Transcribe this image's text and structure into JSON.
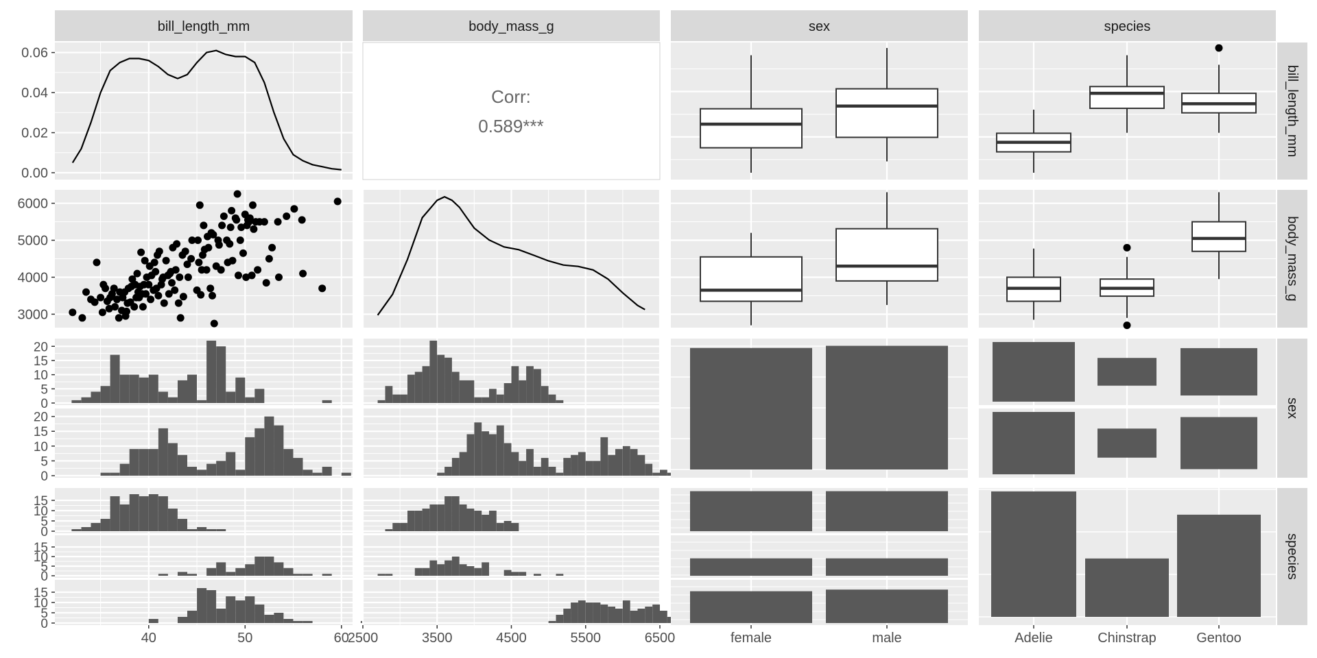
{
  "chart_data": {
    "type": "pairs",
    "variables": [
      "bill_length_mm",
      "body_mass_g",
      "sex",
      "species"
    ],
    "column_strips": [
      "bill_length_mm",
      "body_mass_g",
      "sex",
      "species"
    ],
    "row_strips": [
      "bill_length_mm",
      "body_mass_g",
      "sex",
      "species"
    ],
    "colors": {
      "panel": "#ebebeb",
      "grid": "#ffffff",
      "strip": "#d9d9d9",
      "ink": "#000000",
      "fill": "#595959",
      "box_line": "#333333",
      "corr_text": "#666666"
    },
    "bill_length": {
      "density_ylim": [
        0,
        0.065
      ],
      "density_y_ticks": [
        "0.00",
        "0.02",
        "0.04",
        "0.06"
      ],
      "density_y_values": [
        0,
        0.02,
        0.04,
        0.06
      ],
      "x_ticks": [
        "40",
        "50",
        "60"
      ],
      "x_tick_values": [
        40,
        50,
        60
      ],
      "xlim": [
        31.4,
        60.3
      ],
      "density": [
        [
          32.1,
          0.005
        ],
        [
          33,
          0.012
        ],
        [
          34,
          0.025
        ],
        [
          35,
          0.04
        ],
        [
          36,
          0.051
        ],
        [
          37,
          0.055
        ],
        [
          38,
          0.057
        ],
        [
          39,
          0.057
        ],
        [
          40,
          0.056
        ],
        [
          41,
          0.053
        ],
        [
          42,
          0.049
        ],
        [
          43,
          0.047
        ],
        [
          44,
          0.049
        ],
        [
          45,
          0.055
        ],
        [
          46,
          0.06
        ],
        [
          47,
          0.061
        ],
        [
          48,
          0.059
        ],
        [
          49,
          0.058
        ],
        [
          50,
          0.058
        ],
        [
          51,
          0.055
        ],
        [
          52,
          0.045
        ],
        [
          53,
          0.03
        ],
        [
          54,
          0.017
        ],
        [
          55,
          0.009
        ],
        [
          56,
          0.006
        ],
        [
          57,
          0.004
        ],
        [
          58,
          0.003
        ],
        [
          59,
          0.002
        ],
        [
          60,
          0.0015
        ]
      ]
    },
    "body_mass": {
      "ylim": [
        2600,
        6400
      ],
      "y_ticks": [
        "3000",
        "4000",
        "5000",
        "6000"
      ],
      "y_tick_values": [
        3000,
        4000,
        5000,
        6000
      ],
      "x_ticks": [
        "2500",
        "3500",
        "4500",
        "5500",
        "6500"
      ],
      "x_tick_values": [
        2500,
        3500,
        4500,
        5500,
        6500
      ],
      "xlim": [
        2500,
        6500
      ],
      "density": [
        [
          2700,
          1e-05
        ],
        [
          2900,
          4e-05
        ],
        [
          3100,
          9e-05
        ],
        [
          3300,
          0.00015
        ],
        [
          3500,
          0.000175
        ],
        [
          3600,
          0.00018
        ],
        [
          3700,
          0.000175
        ],
        [
          3800,
          0.000165
        ],
        [
          3900,
          0.00015
        ],
        [
          4000,
          0.000135
        ],
        [
          4200,
          0.000118
        ],
        [
          4400,
          0.000108
        ],
        [
          4600,
          0.000104
        ],
        [
          4800,
          9.6e-05
        ],
        [
          5000,
          8.8e-05
        ],
        [
          5200,
          8.2e-05
        ],
        [
          5400,
          8e-05
        ],
        [
          5600,
          7.5e-05
        ],
        [
          5800,
          6.2e-05
        ],
        [
          6000,
          4.2e-05
        ],
        [
          6200,
          2.4e-05
        ],
        [
          6300,
          1.8e-05
        ]
      ]
    },
    "correlation": {
      "label": "Corr:",
      "value": "0.589***"
    },
    "scatter": [
      [
        32.1,
        3050
      ],
      [
        33.1,
        2900
      ],
      [
        33.5,
        3600
      ],
      [
        34,
        3400
      ],
      [
        34.4,
        3325
      ],
      [
        34.6,
        4400
      ],
      [
        35,
        3450
      ],
      [
        35.2,
        3050
      ],
      [
        35.3,
        3800
      ],
      [
        35.5,
        3700
      ],
      [
        35.7,
        3350
      ],
      [
        35.9,
        3150
      ],
      [
        36,
        3450
      ],
      [
        36.2,
        3550
      ],
      [
        36.4,
        3700
      ],
      [
        36.5,
        3200
      ],
      [
        36.7,
        3400
      ],
      [
        36.9,
        2900
      ],
      [
        37,
        3600
      ],
      [
        37.2,
        3100
      ],
      [
        37.3,
        3450
      ],
      [
        37.5,
        3600
      ],
      [
        37.6,
        2950
      ],
      [
        37.7,
        3075
      ],
      [
        37.8,
        3300
      ],
      [
        37.9,
        3700
      ],
      [
        38.1,
        3325
      ],
      [
        38.2,
        3750
      ],
      [
        38.3,
        3950
      ],
      [
        38.5,
        3200
      ],
      [
        38.6,
        3800
      ],
      [
        38.7,
        3450
      ],
      [
        38.8,
        4100
      ],
      [
        38.9,
        3600
      ],
      [
        39,
        3450
      ],
      [
        39.1,
        3750
      ],
      [
        39.2,
        4675
      ],
      [
        39.3,
        3550
      ],
      [
        39.4,
        3200
      ],
      [
        39.5,
        3800
      ],
      [
        39.6,
        4450
      ],
      [
        39.7,
        3550
      ],
      [
        39.8,
        4000
      ],
      [
        40,
        3800
      ],
      [
        40.1,
        4300
      ],
      [
        40.2,
        3400
      ],
      [
        40.3,
        4050
      ],
      [
        40.5,
        3650
      ],
      [
        40.6,
        4400
      ],
      [
        40.7,
        4150
      ],
      [
        40.8,
        3700
      ],
      [
        40.9,
        4600
      ],
      [
        41,
        3500
      ],
      [
        41.1,
        4700
      ],
      [
        41.3,
        3800
      ],
      [
        41.4,
        3950
      ],
      [
        41.5,
        4000
      ],
      [
        41.6,
        3300
      ],
      [
        41.8,
        4450
      ],
      [
        42,
        4050
      ],
      [
        42.1,
        3550
      ],
      [
        42.2,
        4100
      ],
      [
        42.3,
        4150
      ],
      [
        42.4,
        3850
      ],
      [
        42.5,
        4800
      ],
      [
        42.7,
        3650
      ],
      [
        42.8,
        4200
      ],
      [
        42.9,
        4900
      ],
      [
        43.1,
        3300
      ],
      [
        43.2,
        4000
      ],
      [
        43.3,
        2900
      ],
      [
        43.5,
        4600
      ],
      [
        43.6,
        3475
      ],
      [
        43.8,
        4700
      ],
      [
        44,
        4350
      ],
      [
        44.1,
        4000
      ],
      [
        44.4,
        4500
      ],
      [
        44.5,
        5000
      ],
      [
        45,
        3650
      ],
      [
        45.1,
        5000
      ],
      [
        45.2,
        4400
      ],
      [
        45.3,
        5950
      ],
      [
        45.4,
        3525
      ],
      [
        45.5,
        4200
      ],
      [
        45.6,
        4600
      ],
      [
        45.7,
        5400
      ],
      [
        45.8,
        4750
      ],
      [
        46,
        4200
      ],
      [
        46.1,
        5100
      ],
      [
        46.2,
        4800
      ],
      [
        46.4,
        3700
      ],
      [
        46.5,
        5200
      ],
      [
        46.6,
        3500
      ],
      [
        46.7,
        5150
      ],
      [
        46.8,
        2700
      ],
      [
        47,
        4300
      ],
      [
        47.2,
        5000
      ],
      [
        47.3,
        4875
      ],
      [
        47.5,
        4200
      ],
      [
        47.6,
        5400
      ],
      [
        47.8,
        5650
      ],
      [
        48.1,
        5000
      ],
      [
        48.2,
        4400
      ],
      [
        48.4,
        4900
      ],
      [
        48.5,
        5350
      ],
      [
        48.6,
        5800
      ],
      [
        48.7,
        4450
      ],
      [
        49,
        5600
      ],
      [
        49.1,
        5550
      ],
      [
        49.2,
        6300
      ],
      [
        49.3,
        4050
      ],
      [
        49.5,
        5000
      ],
      [
        49.6,
        5350
      ],
      [
        49.8,
        4650
      ],
      [
        50,
        5700
      ],
      [
        50.1,
        4000
      ],
      [
        50.2,
        5400
      ],
      [
        50.3,
        5550
      ],
      [
        50.4,
        5500
      ],
      [
        50.5,
        5600
      ],
      [
        50.7,
        4050
      ],
      [
        50.8,
        5950
      ],
      [
        50.9,
        5300
      ],
      [
        51.1,
        5500
      ],
      [
        51.3,
        4200
      ],
      [
        51.5,
        5500
      ],
      [
        52,
        5500
      ],
      [
        52.2,
        3850
      ],
      [
        52.5,
        4500
      ],
      [
        52.8,
        4800
      ],
      [
        53.4,
        5500
      ],
      [
        53.5,
        4000
      ],
      [
        54.3,
        5650
      ],
      [
        55.1,
        5850
      ],
      [
        55.9,
        5550
      ],
      [
        56,
        4100
      ],
      [
        58,
        3700
      ],
      [
        59.6,
        6050
      ]
    ],
    "box_sex_bill": [
      {
        "group": "female",
        "min": 32.1,
        "q1": 37.6,
        "median": 42.8,
        "q3": 46.2,
        "max": 58.0
      },
      {
        "group": "male",
        "min": 34.6,
        "q1": 39.9,
        "median": 46.8,
        "q3": 50.6,
        "max": 59.6
      }
    ],
    "box_species_bill": [
      {
        "group": "Adelie",
        "min": 32.1,
        "q1": 36.7,
        "median": 38.8,
        "q3": 40.8,
        "max": 46.0
      },
      {
        "group": "Chinstrap",
        "min": 40.9,
        "q1": 46.3,
        "median": 49.6,
        "q3": 51.1,
        "max": 58.0
      },
      {
        "group": "Gentoo",
        "min": 40.9,
        "q1": 45.3,
        "median": 47.3,
        "q3": 49.6,
        "max": 55.9,
        "outliers": [
          59.6
        ]
      }
    ],
    "box_sex_mass": [
      {
        "group": "female",
        "min": 2700,
        "q1": 3350,
        "median": 3650,
        "q3": 4550,
        "max": 5200
      },
      {
        "group": "male",
        "min": 3250,
        "q1": 3900,
        "median": 4300,
        "q3": 5312,
        "max": 6300
      }
    ],
    "box_species_mass": [
      {
        "group": "Adelie",
        "min": 2850,
        "q1": 3350,
        "median": 3700,
        "q3": 4000,
        "max": 4775
      },
      {
        "group": "Chinstrap",
        "min": 2900,
        "q1": 3488,
        "median": 3700,
        "q3": 3950,
        "max": 4550,
        "outliers": [
          2700,
          4800
        ]
      },
      {
        "group": "Gentoo",
        "min": 3950,
        "q1": 4700,
        "median": 5050,
        "q3": 5500,
        "max": 6300
      }
    ],
    "hist_bill_by_sex": {
      "bin_width": 1,
      "bin_start": 32,
      "y_ticks": [
        "0",
        "5",
        "10",
        "15",
        "20"
      ],
      "y_tick_values": [
        0,
        5,
        10,
        15,
        20
      ],
      "ylim": [
        0,
        22
      ],
      "female": [
        1,
        2,
        4,
        6,
        17,
        10,
        10,
        9,
        10,
        4,
        2,
        8,
        10,
        1,
        22,
        20,
        4,
        9,
        2,
        5,
        0,
        0,
        0,
        0,
        0,
        0,
        1,
        0
      ],
      "male": [
        0,
        0,
        0,
        1,
        1,
        4,
        9,
        9,
        9,
        16,
        11,
        7,
        3,
        2,
        4,
        5,
        8,
        2,
        13,
        16,
        20,
        17,
        9,
        6,
        2,
        1,
        3,
        0,
        1
      ]
    },
    "hist_mass_by_sex": {
      "bin_width": 100,
      "bin_start": 2700,
      "female": [
        1,
        6,
        3,
        3,
        10,
        11,
        13,
        22,
        17,
        16,
        11,
        8,
        8,
        2,
        2,
        5,
        3,
        7,
        13,
        8,
        13,
        12,
        6,
        3,
        1
      ],
      "male": [
        0,
        0,
        0,
        0,
        0,
        0,
        0,
        0,
        1,
        3,
        6,
        8,
        14,
        18,
        15,
        14,
        17,
        11,
        8,
        5,
        9,
        3,
        6,
        3,
        1,
        6,
        7,
        8,
        5,
        5,
        13,
        7,
        9,
        10,
        9,
        7,
        4,
        1,
        2,
        1,
        1,
        0,
        0,
        1
      ]
    },
    "bar_sex": {
      "categories": [
        "female",
        "male"
      ],
      "values": [
        165,
        168
      ],
      "ylim": [
        0,
        175
      ]
    },
    "mosaic_sex_species": {
      "categories": [
        "Adelie",
        "Chinstrap",
        "Gentoo"
      ],
      "female": [
        73,
        34,
        58
      ],
      "male": [
        73,
        34,
        61
      ]
    },
    "hist_bill_by_species": {
      "bin_width": 1,
      "bin_start": 32,
      "y_ticks": [
        "0",
        "5",
        "10",
        "15"
      ],
      "y_tick_values": [
        0,
        5,
        10,
        15
      ],
      "ylim": [
        0,
        20
      ],
      "Adelie": [
        1,
        2,
        4,
        6,
        17,
        13,
        18,
        17,
        18,
        17,
        11,
        6,
        1,
        2,
        1,
        1,
        0
      ],
      "Chinstrap": [
        0,
        0,
        0,
        0,
        0,
        0,
        0,
        0,
        0,
        1,
        0,
        2,
        1,
        0,
        4,
        7,
        2,
        4,
        6,
        10,
        10,
        7,
        4,
        1,
        1,
        0,
        1,
        0
      ],
      "Gentoo": [
        0,
        0,
        0,
        0,
        0,
        0,
        0,
        0,
        2,
        0,
        0,
        3,
        6,
        17,
        16,
        7,
        13,
        11,
        13,
        9,
        4,
        5,
        2,
        1,
        1,
        0,
        0,
        0,
        0,
        0,
        1
      ]
    },
    "hist_mass_by_species": {
      "bin_width": 100,
      "bin_start": 2700,
      "Adelie": [
        0,
        1,
        4,
        4,
        10,
        10,
        11,
        13,
        13,
        17,
        17,
        13,
        11,
        10,
        8,
        10,
        4,
        5,
        4
      ],
      "Chinstrap": [
        1,
        1,
        0,
        0,
        0,
        4,
        4,
        8,
        6,
        8,
        10,
        6,
        5,
        4,
        7,
        0,
        0,
        3,
        2,
        2,
        0,
        1,
        0,
        0,
        1
      ],
      "Gentoo": [
        0,
        0,
        0,
        0,
        0,
        0,
        0,
        0,
        0,
        0,
        0,
        0,
        0,
        0,
        0,
        0,
        0,
        0,
        0,
        0,
        0,
        0,
        0,
        1,
        4,
        7,
        10,
        11,
        10,
        10,
        9,
        8,
        7,
        11,
        6,
        7,
        8,
        9,
        6,
        3,
        3,
        2,
        1,
        1
      ]
    },
    "bar_species_by_sex": {
      "female": [
        73,
        34,
        58
      ],
      "male": [
        73,
        34,
        61
      ]
    },
    "bar_species": {
      "categories": [
        "Adelie",
        "Chinstrap",
        "Gentoo"
      ],
      "values": [
        146,
        68,
        119
      ],
      "ylim": [
        0,
        150
      ]
    },
    "x_labels_sex": [
      "female",
      "male"
    ],
    "x_labels_species": [
      "Adelie",
      "Chinstrap",
      "Gentoo"
    ]
  }
}
